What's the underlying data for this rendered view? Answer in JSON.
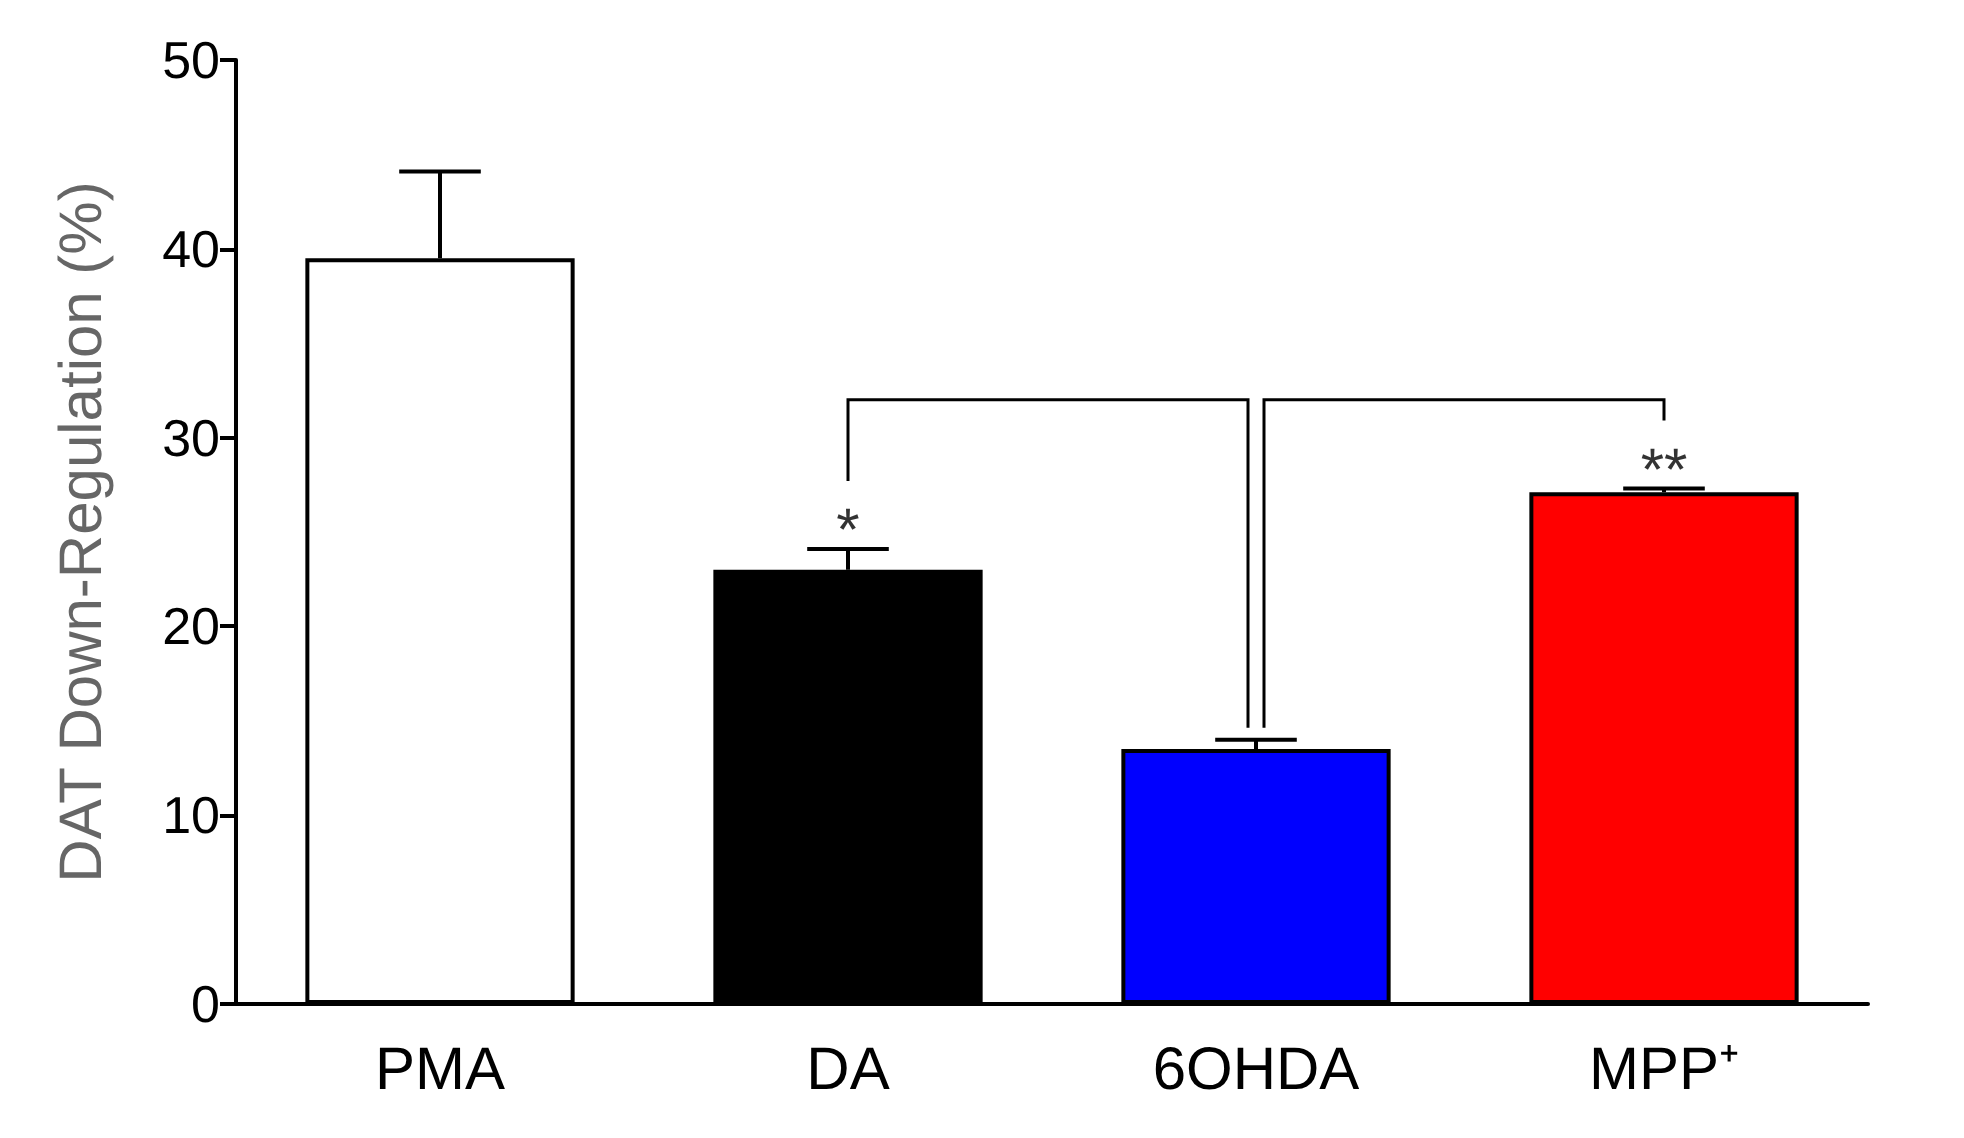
{
  "chart_data": {
    "type": "bar",
    "ylabel": "DAT Down-Regulation (%)",
    "categories": [
      "PMA",
      "DA",
      "6OHDA",
      "MPP⁺"
    ],
    "values": [
      39.5,
      23,
      13.5,
      27.1
    ],
    "colors": [
      "#ffffff",
      "#000000",
      "#0000ff",
      "#ff0000"
    ],
    "errors": [
      [
        39.5,
        44.1
      ],
      [
        23,
        24.1
      ],
      [
        13.5,
        14
      ],
      [
        27.1,
        27.3
      ]
    ],
    "ylim": [
      0,
      50
    ],
    "yticks": [
      0,
      10,
      20,
      30,
      40,
      50
    ],
    "grid": false,
    "annotations": [
      "*",
      "**"
    ]
  }
}
